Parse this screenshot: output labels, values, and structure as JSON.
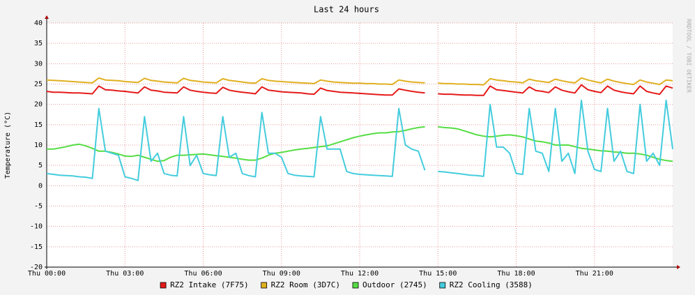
{
  "chart_data": {
    "type": "line",
    "title": "Last 24 hours",
    "y_label": "Temperature (°C)",
    "watermark": "RRDTOOL / TOBI OETIKER",
    "x": [
      0,
      0.25,
      0.5,
      0.75,
      1,
      1.25,
      1.5,
      1.75,
      2,
      2.25,
      2.5,
      2.75,
      3,
      3.25,
      3.5,
      3.75,
      4,
      4.25,
      4.5,
      4.75,
      5,
      5.25,
      5.5,
      5.75,
      6,
      6.25,
      6.5,
      6.75,
      7,
      7.25,
      7.5,
      7.75,
      8,
      8.25,
      8.5,
      8.75,
      9,
      9.25,
      9.5,
      9.75,
      10,
      10.25,
      10.5,
      10.75,
      11,
      11.25,
      11.5,
      11.75,
      12,
      12.25,
      12.5,
      12.75,
      13,
      13.25,
      13.5,
      13.75,
      14,
      14.25,
      14.5,
      14.75,
      15,
      15.25,
      15.5,
      15.75,
      16,
      16.25,
      16.5,
      16.75,
      17,
      17.25,
      17.5,
      17.75,
      18,
      18.25,
      18.5,
      18.75,
      19,
      19.25,
      19.5,
      19.75,
      20,
      20.25,
      20.5,
      20.75,
      21,
      21.25,
      21.5,
      21.75,
      22,
      22.25,
      22.5,
      22.75,
      23,
      23.25,
      23.5,
      23.75,
      24
    ],
    "series": [
      {
        "name": "RZ2 Intake (7F75)",
        "color": "#e51a1a",
        "values": [
          23.2,
          23,
          23,
          22.9,
          22.8,
          22.8,
          22.7,
          22.6,
          24.5,
          23.6,
          23.5,
          23.3,
          23.2,
          23,
          22.8,
          24.3,
          23.5,
          23.3,
          23,
          22.9,
          22.8,
          24.3,
          23.5,
          23.2,
          23,
          22.8,
          22.7,
          24.2,
          23.5,
          23.2,
          23,
          22.8,
          22.6,
          24.3,
          23.5,
          23.3,
          23.1,
          23,
          22.9,
          22.8,
          22.6,
          22.5,
          24,
          23.4,
          23.2,
          23,
          22.9,
          22.8,
          22.7,
          22.6,
          22.5,
          22.4,
          22.3,
          22.3,
          23.8,
          23.5,
          23.2,
          23,
          22.8,
          null,
          22.6,
          22.5,
          22.5,
          22.4,
          22.3,
          22.3,
          22.2,
          22.2,
          24.5,
          23.6,
          23.4,
          23.2,
          23,
          22.8,
          24.3,
          23.4,
          23.2,
          22.9,
          24.3,
          23.5,
          23.1,
          22.8,
          24.8,
          23.6,
          23.2,
          22.9,
          24.5,
          23.5,
          23.1,
          22.8,
          22.6,
          24.5,
          23.2,
          22.8,
          22.5,
          24.5,
          24
        ]
      },
      {
        "name": "RZ2 Room (3D7C)",
        "color": "#e0b020",
        "values": [
          26,
          25.9,
          25.8,
          25.7,
          25.6,
          25.5,
          25.4,
          25.3,
          26.5,
          26,
          25.9,
          25.8,
          25.6,
          25.5,
          25.4,
          26.4,
          25.9,
          25.7,
          25.5,
          25.4,
          25.3,
          26.4,
          25.9,
          25.7,
          25.5,
          25.4,
          25.3,
          26.3,
          25.9,
          25.7,
          25.5,
          25.3,
          25.2,
          26.3,
          25.9,
          25.7,
          25.6,
          25.5,
          25.4,
          25.3,
          25.2,
          25.1,
          26,
          25.7,
          25.5,
          25.4,
          25.3,
          25.2,
          25.2,
          25.1,
          25.1,
          25,
          25,
          24.9,
          26,
          25.7,
          25.5,
          25.4,
          25.3,
          null,
          25.2,
          25.1,
          25.1,
          25,
          25,
          24.9,
          24.9,
          24.8,
          26.3,
          26,
          25.8,
          25.6,
          25.5,
          25.3,
          26.2,
          25.8,
          25.6,
          25.4,
          26.2,
          25.8,
          25.5,
          25.3,
          26.5,
          26,
          25.6,
          25.3,
          26.2,
          25.7,
          25.4,
          25.1,
          24.9,
          26,
          25.5,
          25.2,
          24.9,
          26,
          25.8
        ]
      },
      {
        "name": "Outdoor (2745)",
        "color": "#55dd44",
        "values": [
          9,
          9,
          9.3,
          9.6,
          10,
          10.2,
          9.8,
          9.2,
          8.5,
          8.5,
          8.2,
          7.8,
          7.3,
          7.2,
          7.5,
          7,
          6.5,
          6,
          6.2,
          7,
          7.5,
          7.5,
          7.6,
          7.7,
          7.8,
          7.6,
          7.4,
          7.2,
          7,
          6.8,
          6.5,
          6.3,
          6.3,
          6.8,
          7.5,
          8,
          8.2,
          8.5,
          8.8,
          9,
          9.2,
          9.4,
          9.6,
          9.8,
          10.3,
          10.8,
          11.3,
          11.8,
          12.2,
          12.5,
          12.8,
          13,
          13,
          13.2,
          13.3,
          13.6,
          14,
          14.3,
          14.5,
          null,
          14.5,
          14.3,
          14.2,
          14,
          13.5,
          13,
          12.5,
          12.2,
          12,
          12.2,
          12.4,
          12.5,
          12.3,
          12,
          11.5,
          11,
          10.8,
          10.5,
          10,
          10,
          10,
          9.6,
          9.2,
          9,
          8.8,
          8.6,
          8.5,
          8.3,
          8.2,
          8,
          8,
          7.8,
          7.5,
          7,
          6.5,
          6.2,
          6
        ]
      },
      {
        "name": "RZ2 Cooling (3588)",
        "color": "#44ccdd",
        "values": [
          3,
          2.8,
          2.6,
          2.5,
          2.4,
          2.2,
          2.1,
          1.8,
          19,
          8.5,
          8,
          7.5,
          2.2,
          1.8,
          1.3,
          17,
          6,
          8,
          3,
          2.6,
          2.4,
          17,
          5,
          7.5,
          3,
          2.7,
          2.5,
          17,
          7,
          8,
          3,
          2.5,
          2.2,
          18,
          8,
          8,
          7,
          3,
          2.6,
          2.4,
          2.3,
          2.2,
          17,
          9,
          9,
          9,
          3.5,
          3,
          2.8,
          2.7,
          2.6,
          2.5,
          2.4,
          2.3,
          19,
          10,
          9,
          8.5,
          3.8,
          null,
          3.5,
          3.4,
          3.2,
          3,
          2.8,
          2.6,
          2.5,
          2.3,
          20,
          9.5,
          9.5,
          8,
          3,
          2.8,
          19,
          8.5,
          8,
          3.5,
          19,
          6,
          8,
          3,
          21,
          8.5,
          4,
          3.5,
          19,
          6,
          8.5,
          3.5,
          3,
          20,
          6,
          8,
          5,
          21,
          9
        ]
      }
    ],
    "xlim": [
      0,
      24
    ],
    "xticks": [
      {
        "value": 0,
        "label": "Thu 00:00"
      },
      {
        "value": 3,
        "label": "Thu 03:00"
      },
      {
        "value": 6,
        "label": "Thu 06:00"
      },
      {
        "value": 9,
        "label": "Thu 09:00"
      },
      {
        "value": 12,
        "label": "Thu 12:00"
      },
      {
        "value": 15,
        "label": "Thu 15:00"
      },
      {
        "value": 18,
        "label": "Thu 18:00"
      },
      {
        "value": 21,
        "label": "Thu 21:00"
      }
    ],
    "ylim": [
      -20,
      40
    ],
    "yticks": [
      -20,
      -15,
      -10,
      -5,
      0,
      5,
      10,
      15,
      20,
      25,
      30,
      35,
      40
    ],
    "grid": true
  }
}
